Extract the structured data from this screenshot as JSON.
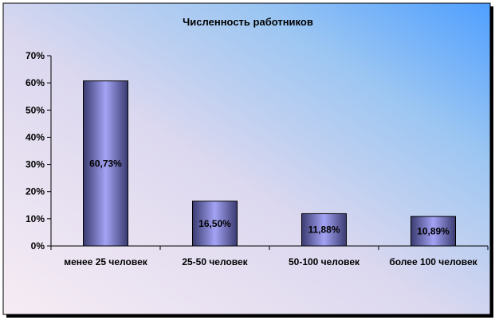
{
  "chart_data": {
    "type": "bar",
    "title": "Численность работников",
    "xlabel": "",
    "ylabel": "",
    "categories": [
      "менее 25 человек",
      "25-50 человек",
      "50-100 человек",
      "более 100 человек"
    ],
    "values": [
      60.73,
      16.5,
      11.88,
      10.89
    ],
    "data_labels": [
      "60,73%",
      "16,50%",
      "11,88%",
      "10,89%"
    ],
    "ylim": [
      0,
      70
    ],
    "y_ticks": [
      0,
      10,
      20,
      30,
      40,
      50,
      60,
      70
    ],
    "y_tick_labels": [
      "0%",
      "10%",
      "20%",
      "30%",
      "40%",
      "50%",
      "60%",
      "70%"
    ],
    "grid": false,
    "legend": "none",
    "colors": {
      "bar_dark": "#3c3c74",
      "bar_light": "#9f9ff2",
      "background_light": "#f4eaf2",
      "background_blue": "#52a2ff"
    }
  }
}
